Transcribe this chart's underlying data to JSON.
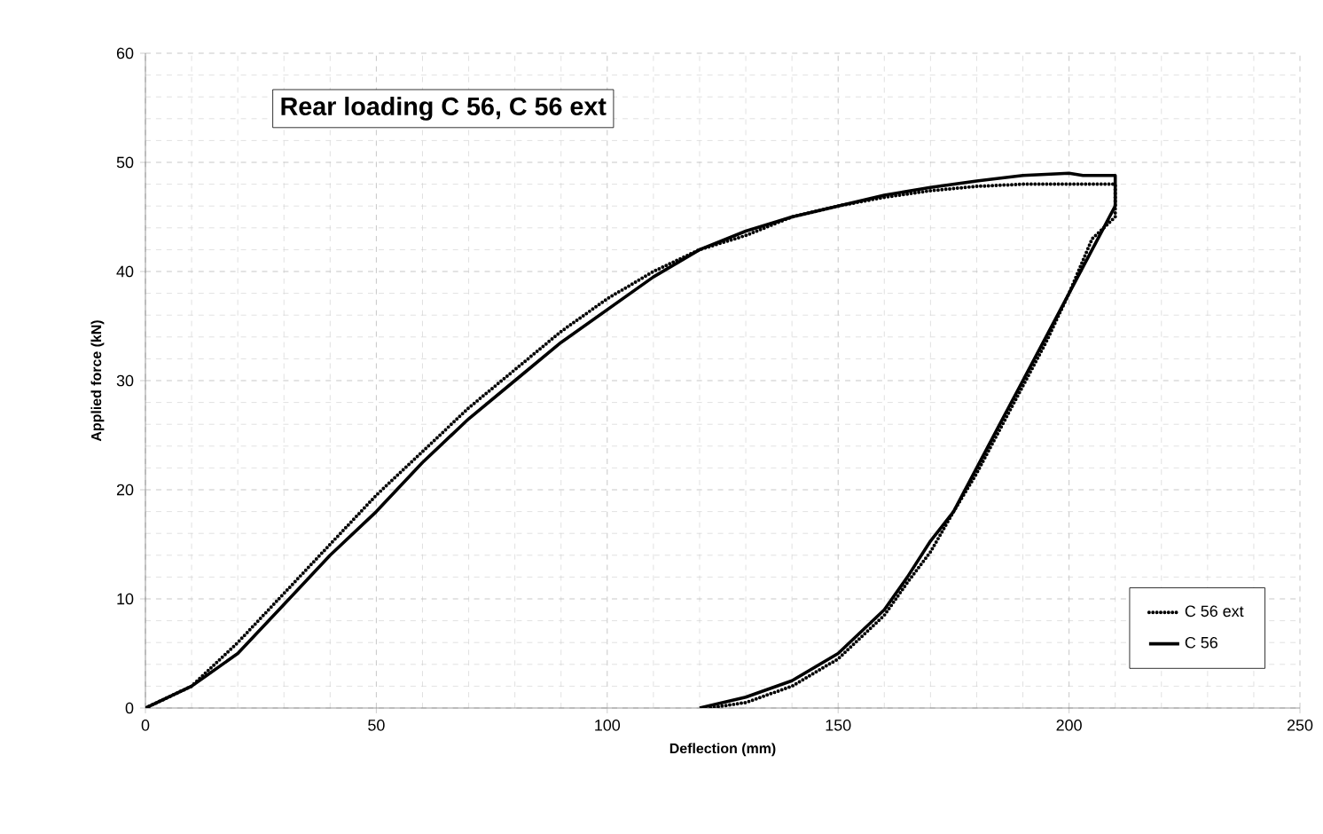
{
  "chart_data": {
    "type": "line",
    "title": "Rear loading C 56, C 56 ext",
    "xlabel": "Deflection (mm)",
    "ylabel": "Applied force (kN)",
    "xlim": [
      0,
      250
    ],
    "ylim": [
      0,
      60
    ],
    "xticks": [
      0,
      50,
      100,
      150,
      200,
      250
    ],
    "yticks": [
      0,
      10,
      20,
      30,
      40,
      50,
      60
    ],
    "grid": true,
    "legend": "bottom right",
    "marker": "none",
    "series": [
      {
        "name": "C 56 ext",
        "color": "#000000",
        "line_style": "dotted",
        "x": [
          0,
          10,
          20,
          30,
          40,
          50,
          60,
          70,
          80,
          90,
          100,
          110,
          120,
          130,
          140,
          150,
          160,
          170,
          180,
          190,
          210,
          210,
          205,
          200,
          195,
          190,
          185,
          180,
          175,
          170,
          165,
          160,
          150,
          140,
          130,
          122
        ],
        "values": [
          0,
          2,
          6,
          10.5,
          15,
          19.5,
          23.5,
          27.5,
          31,
          34.5,
          37.5,
          40,
          42,
          43.3,
          45,
          46,
          46.8,
          47.4,
          47.8,
          48,
          48,
          45,
          43,
          38,
          33.5,
          29.5,
          25.5,
          21.5,
          18,
          14.3,
          11.5,
          8.5,
          4.5,
          2,
          0.5,
          0
        ]
      },
      {
        "name": "C 56",
        "color": "#000000",
        "line_style": "solid",
        "x": [
          0,
          10,
          20,
          30,
          40,
          50,
          60,
          70,
          80,
          90,
          100,
          110,
          120,
          130,
          140,
          150,
          160,
          170,
          180,
          190,
          200,
          203,
          210,
          210,
          205,
          200,
          195,
          190,
          185,
          180,
          175,
          170,
          165,
          160,
          150,
          140,
          130,
          120
        ],
        "values": [
          0,
          2,
          5,
          9.5,
          14,
          18,
          22.5,
          26.5,
          30,
          33.5,
          36.5,
          39.5,
          42,
          43.7,
          45,
          46,
          47,
          47.7,
          48.3,
          48.8,
          49,
          48.8,
          48.8,
          46,
          42,
          38,
          34,
          30,
          26,
          22,
          18,
          15.3,
          12,
          9,
          5,
          2.5,
          1,
          0
        ]
      }
    ]
  }
}
